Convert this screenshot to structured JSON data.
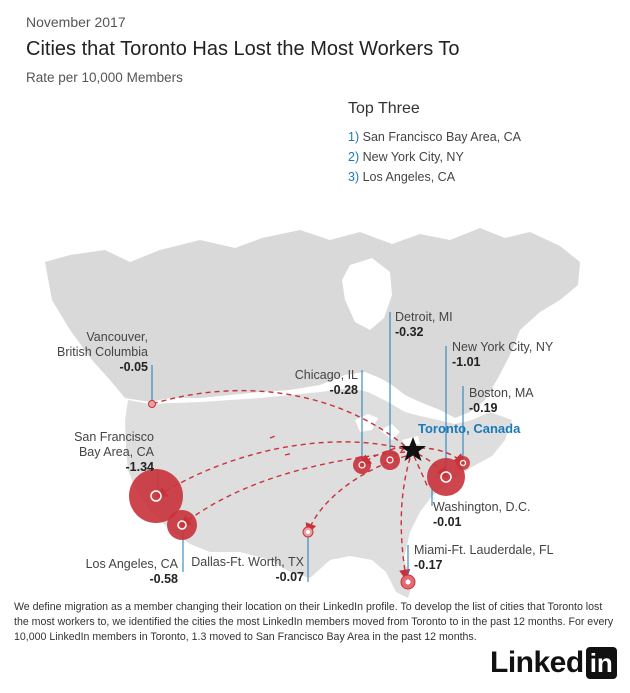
{
  "header": {
    "date": "November 2017",
    "title": "Cities that Toronto Has Lost the Most Workers To",
    "subtitle": "Rate per 10,000 Members"
  },
  "top_three": {
    "heading": "Top Three",
    "items": [
      {
        "num": "1)",
        "label": "San Francisco Bay Area, CA"
      },
      {
        "num": "2)",
        "label": "New York City, NY"
      },
      {
        "num": "3)",
        "label": "Los Angeles, CA"
      }
    ]
  },
  "origin": {
    "label": "Toronto, Canada",
    "icon": "star-icon"
  },
  "cities": [
    {
      "id": "vancouver",
      "name": "Vancouver,\nBritish Columbia",
      "value": "-0.05",
      "rate": 0.05
    },
    {
      "id": "sf",
      "name": "San Francisco\nBay Area, CA",
      "value": "-1.34",
      "rate": 1.34
    },
    {
      "id": "la",
      "name": "Los Angeles, CA",
      "value": "-0.58",
      "rate": 0.58
    },
    {
      "id": "dallas",
      "name": "Dallas-Ft. Worth, TX",
      "value": "-0.07",
      "rate": 0.07
    },
    {
      "id": "chicago",
      "name": "Chicago, IL",
      "value": "-0.28",
      "rate": 0.28
    },
    {
      "id": "detroit",
      "name": "Detroit, MI",
      "value": "-0.32",
      "rate": 0.32
    },
    {
      "id": "nyc",
      "name": "New York City, NY",
      "value": "-1.01",
      "rate": 1.01
    },
    {
      "id": "boston",
      "name": "Boston, MA",
      "value": "-0.19",
      "rate": 0.19
    },
    {
      "id": "dc",
      "name": "Washington, D.C.",
      "value": "-0.01",
      "rate": 0.01
    },
    {
      "id": "miami",
      "name": "Miami-Ft. Lauderdale, FL",
      "value": "-0.17",
      "rate": 0.17
    }
  ],
  "footnote": "We define migration as a member changing their location on their LinkedIn profile. To develop the list of cities that Toronto lost the most workers to, we identified the cities the most LinkedIn members moved from Toronto to in the past 12 months. For every 10,000 LinkedIn members in Toronto, 1.3 moved to San Francisco Bay Area in the past 12 months.",
  "logo": {
    "text_left": "Linked",
    "text_box": "in"
  },
  "colors": {
    "bubble": "#c9323a",
    "arrow": "#c9323a",
    "accent": "#1a7ab8",
    "land": "#d9d9d9",
    "leader": "#1a7ab8"
  }
}
